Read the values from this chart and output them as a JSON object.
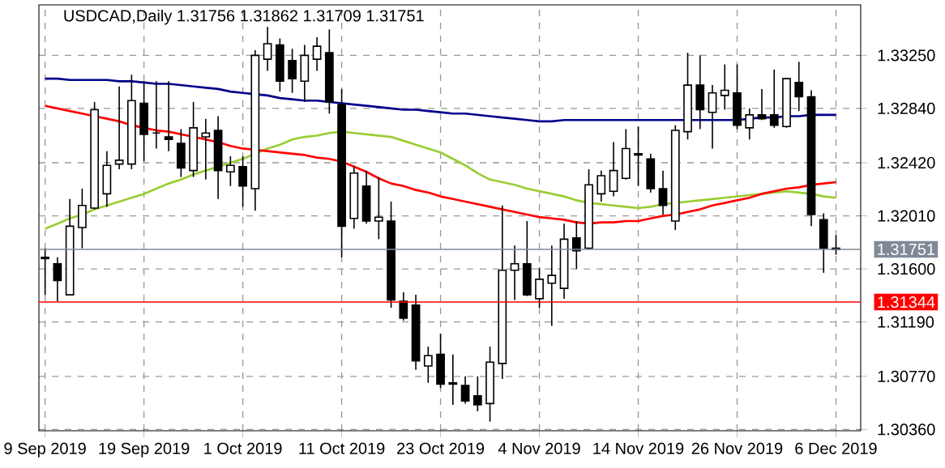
{
  "chart_data": {
    "type": "candlestick",
    "title": "USDCAD,Daily  1.31756 1.31862 1.31709 1.31751",
    "categories": [
      "9 Sep 2019",
      null,
      null,
      null,
      null,
      null,
      null,
      null,
      "19 Sep 2019",
      null,
      null,
      null,
      null,
      null,
      null,
      null,
      "1 Oct 2019",
      null,
      null,
      null,
      null,
      null,
      null,
      null,
      "11 Oct 2019",
      null,
      null,
      null,
      null,
      null,
      null,
      null,
      "23 Oct 2019",
      null,
      null,
      null,
      null,
      null,
      null,
      null,
      "4 Nov 2019",
      null,
      null,
      null,
      null,
      null,
      null,
      null,
      "14 Nov 2019",
      null,
      null,
      null,
      null,
      null,
      null,
      null,
      "26 Nov 2019",
      null,
      null,
      null,
      null,
      null,
      null,
      null,
      "6 Dec 2019"
    ],
    "ohlc": [
      [
        1.3169,
        1.3176,
        1.314,
        1.3168
      ],
      [
        1.3164,
        1.3169,
        1.3135,
        1.3151
      ],
      [
        1.314,
        1.3214,
        1.314,
        1.3193
      ],
      [
        1.3192,
        1.3222,
        1.3176,
        1.3209
      ],
      [
        1.3207,
        1.3289,
        1.3206,
        1.3283
      ],
      [
        1.3218,
        1.3251,
        1.3208,
        1.324
      ],
      [
        1.3241,
        1.3301,
        1.3237,
        1.3244
      ],
      [
        1.3241,
        1.331,
        1.3237,
        1.329
      ],
      [
        1.3288,
        1.3305,
        1.3243,
        1.3264
      ],
      [
        1.3265,
        1.3305,
        1.3253,
        1.3265
      ],
      [
        1.3262,
        1.3305,
        1.3251,
        1.326
      ],
      [
        1.3257,
        1.3268,
        1.3231,
        1.3238
      ],
      [
        1.3236,
        1.3289,
        1.3231,
        1.3269
      ],
      [
        1.3262,
        1.3276,
        1.3229,
        1.3265
      ],
      [
        1.3267,
        1.3278,
        1.3214,
        1.3236
      ],
      [
        1.3235,
        1.3247,
        1.3224,
        1.324
      ],
      [
        1.3239,
        1.3247,
        1.3208,
        1.3224
      ],
      [
        1.3222,
        1.3329,
        1.3205,
        1.3325
      ],
      [
        1.3322,
        1.3347,
        1.3313,
        1.3334
      ],
      [
        1.3333,
        1.3338,
        1.3297,
        1.3305
      ],
      [
        1.3321,
        1.333,
        1.3296,
        1.3307
      ],
      [
        1.3305,
        1.3333,
        1.3289,
        1.3325
      ],
      [
        1.3322,
        1.3339,
        1.3313,
        1.3332
      ],
      [
        1.3327,
        1.3345,
        1.328,
        1.3289
      ],
      [
        1.3287,
        1.3299,
        1.3169,
        1.3193
      ],
      [
        1.3199,
        1.3239,
        1.3191,
        1.3234
      ],
      [
        1.3224,
        1.3236,
        1.3195,
        1.3197
      ],
      [
        1.3197,
        1.3231,
        1.3183,
        1.32
      ],
      [
        1.3197,
        1.3212,
        1.313,
        1.3136
      ],
      [
        1.3135,
        1.3142,
        1.312,
        1.3122
      ],
      [
        1.3132,
        1.314,
        1.3082,
        1.3089
      ],
      [
        1.3085,
        1.31,
        1.3072,
        1.3093
      ],
      [
        1.3094,
        1.311,
        1.3068,
        1.3071
      ],
      [
        1.3072,
        1.3094,
        1.3055,
        1.3071
      ],
      [
        1.307,
        1.3077,
        1.3056,
        1.3058
      ],
      [
        1.3062,
        1.3077,
        1.305,
        1.3055
      ],
      [
        1.3056,
        1.31,
        1.3042,
        1.3088
      ],
      [
        1.3087,
        1.3209,
        1.3075,
        1.3159
      ],
      [
        1.3159,
        1.3178,
        1.3136,
        1.3164
      ],
      [
        1.3164,
        1.3197,
        1.3139,
        1.314
      ],
      [
        1.3137,
        1.3161,
        1.313,
        1.3152
      ],
      [
        1.3149,
        1.3178,
        1.3116,
        1.3155
      ],
      [
        1.3145,
        1.3195,
        1.3137,
        1.3183
      ],
      [
        1.3184,
        1.3197,
        1.316,
        1.3174
      ],
      [
        1.3176,
        1.3237,
        1.3175,
        1.3225
      ],
      [
        1.3218,
        1.3236,
        1.3212,
        1.3232
      ],
      [
        1.322,
        1.3258,
        1.3216,
        1.3236
      ],
      [
        1.323,
        1.3268,
        1.3229,
        1.3253
      ],
      [
        1.3249,
        1.327,
        1.3224,
        1.3248
      ],
      [
        1.3245,
        1.3249,
        1.3219,
        1.3222
      ],
      [
        1.3222,
        1.3236,
        1.3202,
        1.3209
      ],
      [
        1.3197,
        1.3271,
        1.319,
        1.3267
      ],
      [
        1.3266,
        1.3327,
        1.326,
        1.3302
      ],
      [
        1.3302,
        1.3325,
        1.3268,
        1.3283
      ],
      [
        1.3281,
        1.3302,
        1.3253,
        1.3296
      ],
      [
        1.3294,
        1.3318,
        1.3283,
        1.3298
      ],
      [
        1.3296,
        1.3318,
        1.3268,
        1.3271
      ],
      [
        1.3269,
        1.3284,
        1.326,
        1.3279
      ],
      [
        1.3279,
        1.3299,
        1.3275,
        1.3276
      ],
      [
        1.3279,
        1.3314,
        1.3269,
        1.3271
      ],
      [
        1.327,
        1.3307,
        1.3269,
        1.3307
      ],
      [
        1.3304,
        1.332,
        1.3282,
        1.3293
      ],
      [
        1.3293,
        1.3298,
        1.3193,
        1.3202
      ],
      [
        1.3198,
        1.3203,
        1.3157,
        1.3176
      ],
      [
        1.3176,
        1.3186,
        1.3171,
        1.3175
      ]
    ],
    "series": [
      {
        "type": "line",
        "color": "#00008b",
        "values": [
          1.3307,
          1.3307,
          1.3306,
          1.3306,
          1.3306,
          1.3306,
          1.3305,
          1.3305,
          1.3304,
          1.3303,
          1.3303,
          1.3302,
          1.3301,
          1.33,
          1.3299,
          1.3297,
          1.3296,
          1.3295,
          1.3294,
          1.3292,
          1.3291,
          1.329,
          1.329,
          1.3289,
          1.3288,
          1.3287,
          1.3286,
          1.3285,
          1.3284,
          1.3283,
          1.3283,
          1.3282,
          1.3281,
          1.328,
          1.328,
          1.3279,
          1.3278,
          1.3277,
          1.3276,
          1.3275,
          1.3274,
          1.3274,
          1.3275,
          1.3275,
          1.3275,
          1.3275,
          1.3275,
          1.3275,
          1.3275,
          1.3275,
          1.3275,
          1.3275,
          1.3275,
          1.3275,
          1.3275,
          1.3275,
          1.3275,
          1.3276,
          1.3277,
          1.3277,
          1.3278,
          1.3278,
          1.3279,
          1.3279,
          1.3279
        ]
      },
      {
        "type": "line",
        "color": "#9acd32",
        "values": [
          1.3191,
          1.3195,
          1.3199,
          1.3202,
          1.3206,
          1.3209,
          1.3212,
          1.3215,
          1.3218,
          1.3222,
          1.3226,
          1.3229,
          1.3233,
          1.3236,
          1.3239,
          1.3242,
          1.3245,
          1.3249,
          1.3253,
          1.3256,
          1.326,
          1.3262,
          1.3263,
          1.3265,
          1.3266,
          1.3265,
          1.3264,
          1.3263,
          1.3262,
          1.3259,
          1.3256,
          1.3253,
          1.325,
          1.3245,
          1.324,
          1.3234,
          1.3229,
          1.3227,
          1.3225,
          1.3222,
          1.322,
          1.3218,
          1.3216,
          1.3213,
          1.3211,
          1.321,
          1.3209,
          1.3208,
          1.3207,
          1.3208,
          1.321,
          1.3211,
          1.3212,
          1.3213,
          1.3214,
          1.3215,
          1.3216,
          1.3217,
          1.3218,
          1.3219,
          1.322,
          1.3219,
          1.3218,
          1.3216,
          1.3215
        ]
      },
      {
        "type": "line",
        "color": "#ff0000",
        "values": [
          1.3286,
          1.3284,
          1.3282,
          1.328,
          1.3278,
          1.3276,
          1.3274,
          1.3271,
          1.3269,
          1.3267,
          1.3266,
          1.3264,
          1.3262,
          1.326,
          1.3258,
          1.3255,
          1.3253,
          1.3252,
          1.3251,
          1.325,
          1.3249,
          1.3248,
          1.3246,
          1.3245,
          1.3243,
          1.3239,
          1.3235,
          1.323,
          1.3226,
          1.3224,
          1.3221,
          1.3219,
          1.3216,
          1.3214,
          1.3212,
          1.321,
          1.3208,
          1.3206,
          1.3204,
          1.3202,
          1.32,
          1.3199,
          1.3198,
          1.3196,
          1.3195,
          1.3196,
          1.3196,
          1.3197,
          1.3197,
          1.3199,
          1.3201,
          1.3202,
          1.3204,
          1.3206,
          1.3209,
          1.3211,
          1.3213,
          1.3215,
          1.3218,
          1.322,
          1.3222,
          1.3223,
          1.3225,
          1.3226,
          1.3227
        ]
      }
    ],
    "ylim": [
      1.3035,
      1.3364
    ],
    "yticks": [
      {
        "value": 1.3036,
        "label": "1.30360"
      },
      {
        "value": 1.3077,
        "label": "1.30770"
      },
      {
        "value": 1.3119,
        "label": "1.31190"
      },
      {
        "value": 1.316,
        "label": "1.31600"
      },
      {
        "value": 1.3201,
        "label": "1.32010"
      },
      {
        "value": 1.3242,
        "label": "1.32420"
      },
      {
        "value": 1.3284,
        "label": "1.32840"
      },
      {
        "value": 1.3325,
        "label": "1.33250"
      }
    ],
    "ref_lines": [
      {
        "axis": "y",
        "value": 1.31751,
        "label": "1.31751",
        "color": "#7f8a96"
      },
      {
        "axis": "y",
        "value": 1.31344,
        "label": "1.31344",
        "color": "#ff0000"
      }
    ],
    "grid": true
  }
}
